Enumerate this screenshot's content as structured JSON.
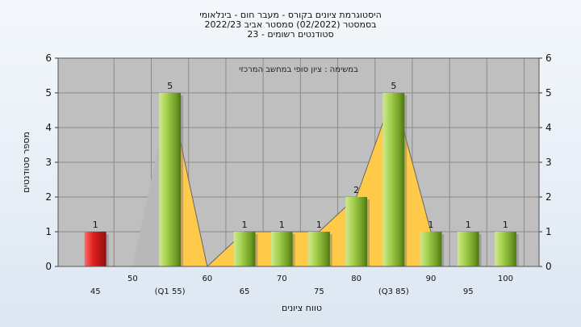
{
  "title": {
    "line1": "היסטוגרמת ציונים בקורס - מעבר חום - בינלאומי",
    "line2": "בסמסטר  (02/2022)  סמסטר אביב 2022/23",
    "line3": "סטודנטים רשומים - 23"
  },
  "chart_data": {
    "type": "bar",
    "subtitle": "במשימה : ציון סופי במחשב המרכזי",
    "ylabel": "מספר סטודנטים",
    "xlabel": "טווח ציונים",
    "ylim": [
      0,
      6
    ],
    "yticks": [
      0,
      1,
      2,
      3,
      4,
      5,
      6
    ],
    "grid": true,
    "categories": [
      "45",
      "50",
      "(Q1 55)",
      "60",
      "65",
      "70",
      "75",
      "80",
      "(Q3 85)",
      "90",
      "95",
      "100"
    ],
    "values": [
      1,
      0,
      5,
      0,
      1,
      1,
      1,
      2,
      5,
      1,
      1,
      1
    ],
    "data_labels": [
      "1",
      "",
      "5",
      "",
      "1",
      "1",
      "1",
      "2",
      "5",
      "1",
      "1",
      "1"
    ],
    "highlight_color": "#e02020",
    "bar_color": "#8fc43a",
    "area_color": "#ffc94a",
    "area_gray_color": "#b8b8b8"
  }
}
